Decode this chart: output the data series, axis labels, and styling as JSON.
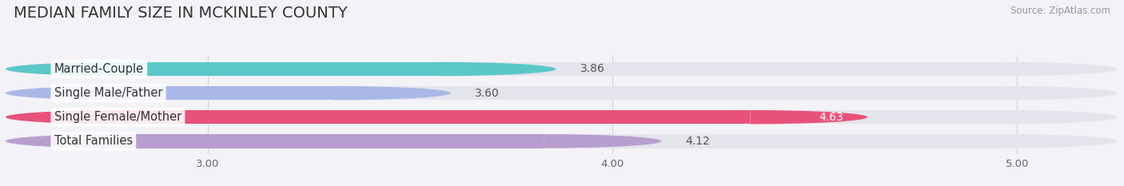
{
  "title": "MEDIAN FAMILY SIZE IN MCKINLEY COUNTY",
  "source": "Source: ZipAtlas.com",
  "categories": [
    "Married-Couple",
    "Single Male/Father",
    "Single Female/Mother",
    "Total Families"
  ],
  "values": [
    3.86,
    3.6,
    4.63,
    4.12
  ],
  "bar_colors": [
    "#5bc8c8",
    "#aab8e8",
    "#e8527a",
    "#b89ece"
  ],
  "bar_bg_color": "#e4e4ec",
  "xlim_left": 2.5,
  "xlim_right": 5.25,
  "xticks": [
    3.0,
    4.0,
    5.0
  ],
  "xtick_labels": [
    "3.00",
    "4.00",
    "5.00"
  ],
  "label_fontsize": 10.5,
  "value_fontsize": 10.0,
  "title_fontsize": 14,
  "bar_height": 0.58,
  "background_color": "#f2f2f7",
  "value_label_color_inside": "#ffffff",
  "value_label_color_outside": "#555555",
  "grid_color": "#d0d0d8"
}
